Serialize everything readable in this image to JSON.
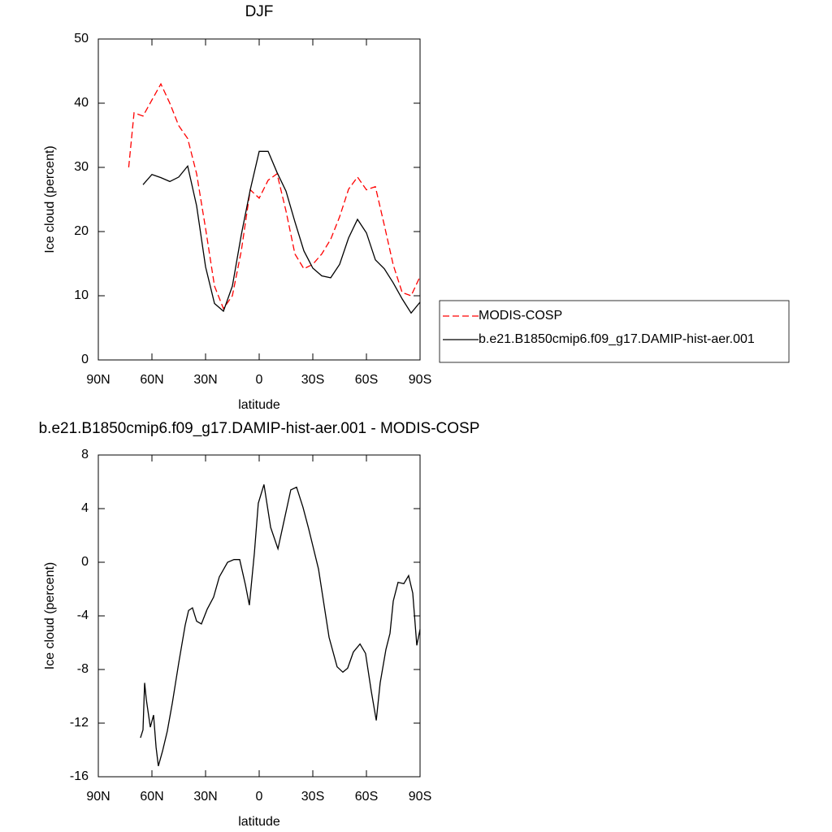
{
  "chart_data": [
    {
      "type": "line",
      "title": "DJF",
      "xlabel": "latitude",
      "ylabel": "Ice cloud (percent)",
      "x": [
        73,
        70,
        65,
        60,
        55,
        50,
        45,
        40,
        35,
        30,
        25,
        20,
        15,
        10,
        5,
        0,
        -5,
        -10,
        -15,
        -20,
        -25,
        -30,
        -35,
        -40,
        -45,
        -50,
        -55,
        -60,
        -65,
        -70,
        -75,
        -80,
        -85,
        -90
      ],
      "series": [
        {
          "name": "MODIS-COSP",
          "color": "#ff0000",
          "dash": true,
          "values": [
            30,
            38.5,
            38,
            40.5,
            43,
            40,
            36.5,
            34.5,
            29,
            20.5,
            11.5,
            8,
            10,
            17,
            26.5,
            25.2,
            28,
            29,
            23.2,
            16.5,
            14.2,
            14.9,
            16.5,
            18.8,
            22.3,
            26.6,
            28.5,
            26.5,
            27,
            21,
            14.8,
            10.5,
            10,
            13
          ]
        },
        {
          "name": "b.e21.B1850cmip6.f09_g17.DAMIP-hist-aer.001",
          "color": "#000000",
          "dash": false,
          "values": [
            null,
            null,
            27.3,
            28.9,
            28.4,
            27.8,
            28.5,
            30.2,
            24,
            14.5,
            8.8,
            7.6,
            11.5,
            19.5,
            26.5,
            32.5,
            32.5,
            29.2,
            26.3,
            21.5,
            17,
            14.3,
            13.1,
            12.8,
            14.9,
            19,
            21.9,
            19.8,
            15.6,
            14.2,
            12,
            9.5,
            7.3,
            9
          ]
        }
      ],
      "xlim": [
        90,
        -90
      ],
      "ylim": [
        0,
        50
      ],
      "xticks": [
        {
          "value": 90,
          "label": "90N"
        },
        {
          "value": 60,
          "label": "60N"
        },
        {
          "value": 30,
          "label": "30N"
        },
        0,
        {
          "value": -30,
          "label": "30S"
        },
        {
          "value": -60,
          "label": "60S"
        },
        {
          "value": -90,
          "label": "90S"
        }
      ],
      "yticks": [
        0,
        10,
        20,
        30,
        40,
        50
      ],
      "legend": "outside-right"
    },
    {
      "type": "line",
      "title": "b.e21.B1850cmip6.f09_g17.DAMIP-hist-aer.001 - MODIS-COSP",
      "xlabel": "latitude",
      "ylabel": "Ice cloud (percent)",
      "x": [
        66.4,
        65,
        64.1,
        63.2,
        60.9,
        59.1,
        57.7,
        56.4,
        54.1,
        51.4,
        48.6,
        45,
        41.4,
        39.5,
        37.3,
        35,
        32.3,
        29.1,
        25.5,
        22.3,
        17.7,
        14.1,
        10.9,
        7.7,
        5.5,
        2.7,
        0.5,
        -2.7,
        -6.4,
        -10.5,
        -14.1,
        -17.7,
        -20.9,
        -24.5,
        -27.7,
        -33.2,
        -39.1,
        -43.6,
        -46.8,
        -49.5,
        -52.7,
        -56.4,
        -59.5,
        -62.7,
        -65.5,
        -67.7,
        -70.9,
        -73.2,
        -75,
        -77.7,
        -80.9,
        -83.6,
        -85.9,
        -88.2,
        -90
      ],
      "values": [
        -13.1,
        -12.5,
        -9,
        -10.2,
        -12.3,
        -11.4,
        -13.8,
        -15.2,
        -14.1,
        -12.6,
        -10.5,
        -7.5,
        -4.7,
        -3.6,
        -3.4,
        -4.4,
        -4.6,
        -3.5,
        -2.6,
        -1.1,
        0,
        0.2,
        0.2,
        -1.7,
        -3.2,
        0.7,
        4.4,
        5.8,
        2.6,
        1,
        3.2,
        5.4,
        5.6,
        4.1,
        2.5,
        -0.5,
        -5.6,
        -7.8,
        -8.2,
        -7.9,
        -6.7,
        -6.1,
        -6.8,
        -9.6,
        -11.8,
        -9,
        -6.5,
        -5.3,
        -2.9,
        -1.5,
        -1.6,
        -1,
        -2.3,
        -6.2,
        -5
      ],
      "color": "#000000",
      "xlim": [
        90,
        -90
      ],
      "ylim": [
        -16,
        8
      ],
      "xticks": [
        {
          "value": 90,
          "label": "90N"
        },
        {
          "value": 60,
          "label": "60N"
        },
        {
          "value": 30,
          "label": "30N"
        },
        0,
        {
          "value": -30,
          "label": "30S"
        },
        {
          "value": -60,
          "label": "60S"
        },
        {
          "value": -90,
          "label": "90S"
        }
      ],
      "yticks": [
        -16,
        -12,
        -8,
        -4,
        0,
        4,
        8
      ]
    }
  ]
}
